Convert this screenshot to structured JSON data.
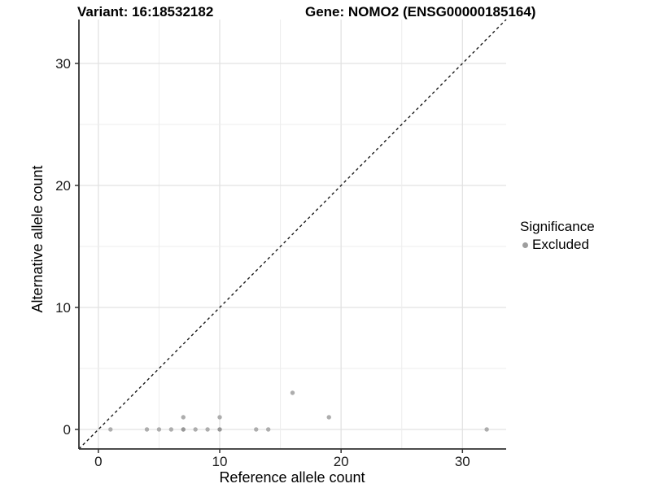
{
  "header": {
    "variant_title": "Variant: 16:18532182",
    "gene_title": "Gene: NOMO2 (ENSG00000185164)"
  },
  "chart_data": {
    "type": "scatter",
    "xlabel": "Reference allele count",
    "ylabel": "Alternative allele count",
    "xlim": [
      -1.6,
      33.6
    ],
    "ylim": [
      -1.6,
      33.6
    ],
    "x_ticks": [
      0,
      10,
      20,
      30
    ],
    "y_ticks": [
      0,
      10,
      20,
      30
    ],
    "grid_interval": 5,
    "grid_max": 30,
    "identity_line": {
      "style": "dashed",
      "equation": "y = x"
    },
    "series": [
      {
        "name": "Excluded",
        "points": [
          {
            "x": 1,
            "y": 0
          },
          {
            "x": 4,
            "y": 0
          },
          {
            "x": 5,
            "y": 0
          },
          {
            "x": 6,
            "y": 0
          },
          {
            "x": 7,
            "y": 0,
            "dark": true
          },
          {
            "x": 7,
            "y": 1
          },
          {
            "x": 8,
            "y": 0
          },
          {
            "x": 9,
            "y": 0
          },
          {
            "x": 10,
            "y": 0,
            "dark": true
          },
          {
            "x": 10,
            "y": 1
          },
          {
            "x": 13,
            "y": 0
          },
          {
            "x": 14,
            "y": 0
          },
          {
            "x": 16,
            "y": 3
          },
          {
            "x": 19,
            "y": 1
          },
          {
            "x": 32,
            "y": 0
          }
        ]
      }
    ]
  },
  "legend": {
    "title": "Significance",
    "items": [
      {
        "label": "Excluded",
        "color": "#9e9e9e"
      }
    ]
  },
  "colors": {
    "background": "#ffffff",
    "grid_major": "#e2e2e2",
    "grid_minor": "#ededed",
    "axis_line": "#333333",
    "tick_mark": "#333333",
    "tick_label": "#1a1a1a",
    "axis_title": "#000000",
    "dashed_line": "#1a1a1a",
    "point": "#adadad",
    "point_dark": "#979797"
  }
}
